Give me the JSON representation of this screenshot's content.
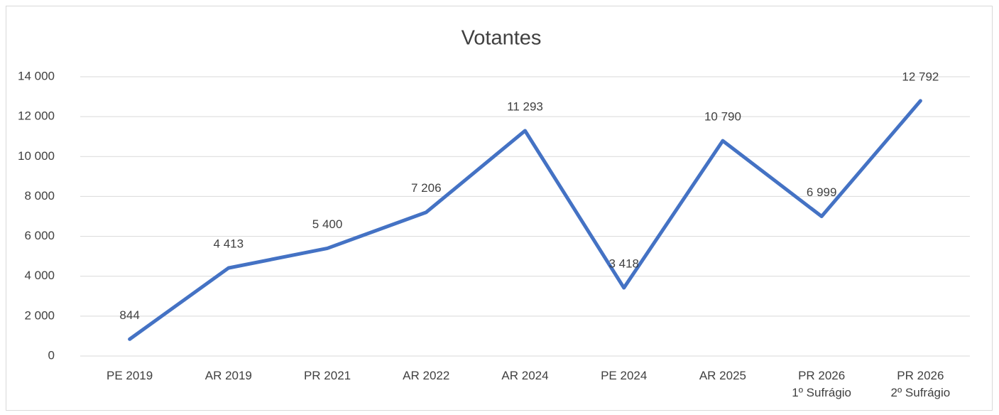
{
  "chart_data": {
    "type": "line",
    "title": "Votantes",
    "categories": [
      "PE 2019",
      "AR 2019",
      "PR 2021",
      "AR 2022",
      "AR 2024",
      "PE 2024",
      "AR 2025",
      "PR 2026\n1º Sufrágio",
      "PR 2026\n2º Sufrágio"
    ],
    "values": [
      844,
      4413,
      5400,
      7206,
      11293,
      3418,
      10790,
      6999,
      12792
    ],
    "value_labels": [
      "844",
      "4 413",
      "5 400",
      "7 206",
      "11 293",
      "3 418",
      "10 790",
      "6 999",
      "12 792"
    ],
    "color": "#4472c4",
    "ylim": [
      0,
      14000
    ],
    "yticks": [
      0,
      {
        "value": 2000,
        "label": "2 000"
      },
      {
        "value": 4000,
        "label": "4 000"
      },
      {
        "value": 6000,
        "label": "6 000"
      },
      {
        "value": 8000,
        "label": "8 000"
      },
      {
        "value": 10000,
        "label": "10 000"
      },
      {
        "value": 12000,
        "label": "12 000"
      },
      {
        "value": 14000,
        "label": "14 000"
      }
    ],
    "grid": true
  }
}
